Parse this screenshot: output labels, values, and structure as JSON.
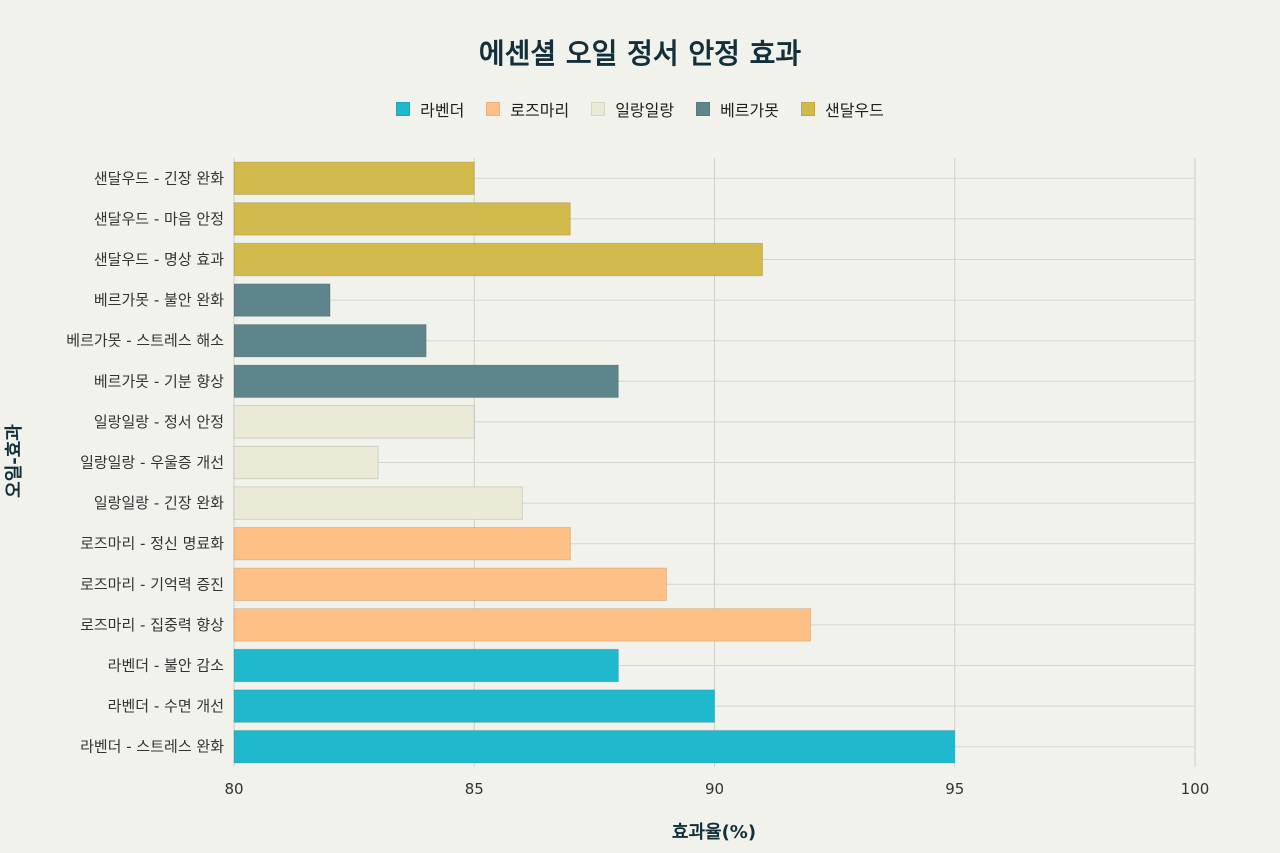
{
  "chart_data": {
    "type": "bar",
    "orientation": "horizontal",
    "title": "에센셜 오일 정서 안정 효과",
    "xlabel": "효과율(%)",
    "ylabel": "오일-효과",
    "xlim": [
      80,
      100
    ],
    "xticks": [
      80,
      85,
      90,
      95,
      100
    ],
    "grid": true,
    "legend_position": "top-center",
    "series": [
      {
        "name": "라벤더",
        "color": "#20b8cc"
      },
      {
        "name": "로즈마리",
        "color": "#ffc085"
      },
      {
        "name": "일랑일랑",
        "color": "#eaead6"
      },
      {
        "name": "베르가못",
        "color": "#5e858b"
      },
      {
        "name": "샌달우드",
        "color": "#d2b94c"
      }
    ],
    "bars": [
      {
        "label": "샌달우드 - 긴장 완화",
        "series": "샌달우드",
        "value": 85
      },
      {
        "label": "샌달우드 - 마음 안정",
        "series": "샌달우드",
        "value": 87
      },
      {
        "label": "샌달우드 - 명상 효과",
        "series": "샌달우드",
        "value": 91
      },
      {
        "label": "베르가못 - 불안 완화",
        "series": "베르가못",
        "value": 82
      },
      {
        "label": "베르가못 - 스트레스 해소",
        "series": "베르가못",
        "value": 84
      },
      {
        "label": "베르가못 - 기분 향상",
        "series": "베르가못",
        "value": 88
      },
      {
        "label": "일랑일랑 - 정서 안정",
        "series": "일랑일랑",
        "value": 85
      },
      {
        "label": "일랑일랑 - 우울증 개선",
        "series": "일랑일랑",
        "value": 83
      },
      {
        "label": "일랑일랑 - 긴장 완화",
        "series": "일랑일랑",
        "value": 86
      },
      {
        "label": "로즈마리 - 정신 명료화",
        "series": "로즈마리",
        "value": 87
      },
      {
        "label": "로즈마리 - 기억력 증진",
        "series": "로즈마리",
        "value": 89
      },
      {
        "label": "로즈마리 - 집중력 향상",
        "series": "로즈마리",
        "value": 92
      },
      {
        "label": "라벤더 - 불안 감소",
        "series": "라벤더",
        "value": 88
      },
      {
        "label": "라벤더 - 수면 개선",
        "series": "라벤더",
        "value": 90
      },
      {
        "label": "라벤더 - 스트레스 완화",
        "series": "라벤더",
        "value": 95
      }
    ]
  }
}
